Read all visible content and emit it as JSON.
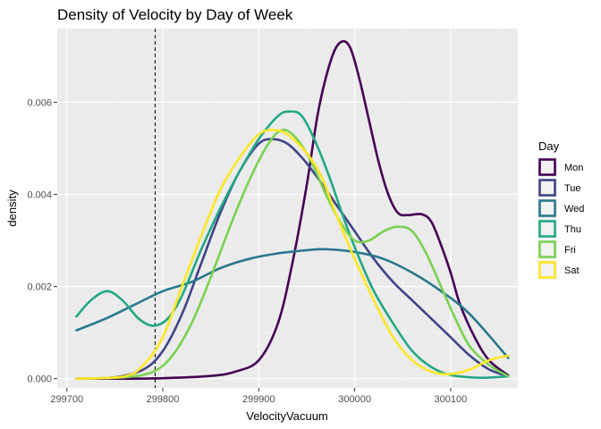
{
  "chart_data": {
    "type": "line",
    "title": "Density of Velocity by Day of Week",
    "xlabel": "VelocityVacuum",
    "ylabel": "density",
    "xlim": [
      299690,
      300170
    ],
    "ylim": [
      -0.0002,
      0.0076
    ],
    "x_ticks": [
      299700,
      299800,
      299900,
      300000,
      300100
    ],
    "x_tick_labels": [
      "299700",
      "299800",
      "299900",
      "300000",
      "300100"
    ],
    "y_ticks": [
      0.0,
      0.002,
      0.004,
      0.006
    ],
    "y_tick_labels": [
      "0.000",
      "0.002",
      "0.004",
      "0.006"
    ],
    "grid": true,
    "vline": 299792,
    "legend": {
      "title": "Day",
      "position": "right"
    },
    "series": [
      {
        "name": "Mon",
        "color": "#440154",
        "points": [
          [
            299710,
            0
          ],
          [
            299750,
            0
          ],
          [
            299800,
            1e-05
          ],
          [
            299850,
            6e-05
          ],
          [
            299875,
            0.00015
          ],
          [
            299900,
            0.0004
          ],
          [
            299920,
            0.0012
          ],
          [
            299935,
            0.0025
          ],
          [
            299950,
            0.0042
          ],
          [
            299962,
            0.0058
          ],
          [
            299975,
            0.0069
          ],
          [
            299985,
            0.0073
          ],
          [
            299995,
            0.0072
          ],
          [
            300005,
            0.0065
          ],
          [
            300015,
            0.0056
          ],
          [
            300025,
            0.0047
          ],
          [
            300035,
            0.004
          ],
          [
            300045,
            0.0036
          ],
          [
            300055,
            0.00355
          ],
          [
            300070,
            0.00357
          ],
          [
            300080,
            0.0034
          ],
          [
            300090,
            0.0029
          ],
          [
            300100,
            0.0023
          ],
          [
            300110,
            0.0016
          ],
          [
            300125,
            0.0009
          ],
          [
            300140,
            0.0004
          ],
          [
            300160,
            7e-05
          ]
        ]
      },
      {
        "name": "Tue",
        "color": "#414487",
        "points": [
          [
            299710,
            0
          ],
          [
            299750,
            3e-05
          ],
          [
            299780,
            0.0002
          ],
          [
            299800,
            0.0006
          ],
          [
            299820,
            0.0014
          ],
          [
            299840,
            0.0025
          ],
          [
            299860,
            0.0036
          ],
          [
            299880,
            0.0045
          ],
          [
            299900,
            0.0051
          ],
          [
            299915,
            0.0052
          ],
          [
            299930,
            0.0051
          ],
          [
            299945,
            0.0048
          ],
          [
            299960,
            0.0044
          ],
          [
            299980,
            0.0038
          ],
          [
            300000,
            0.0032
          ],
          [
            300020,
            0.0026
          ],
          [
            300040,
            0.0021
          ],
          [
            300060,
            0.0017
          ],
          [
            300080,
            0.0013
          ],
          [
            300100,
            0.0009
          ],
          [
            300120,
            0.0005
          ],
          [
            300140,
            0.0002
          ],
          [
            300160,
            5e-05
          ]
        ]
      },
      {
        "name": "Wed",
        "color": "#2a788e",
        "points": [
          [
            299710,
            0.00105
          ],
          [
            299740,
            0.0013
          ],
          [
            299770,
            0.0016
          ],
          [
            299800,
            0.0019
          ],
          [
            299830,
            0.0021
          ],
          [
            299860,
            0.0024
          ],
          [
            299890,
            0.0026
          ],
          [
            299920,
            0.00272
          ],
          [
            299950,
            0.00279
          ],
          [
            299970,
            0.00281
          ],
          [
            300000,
            0.00275
          ],
          [
            300030,
            0.0026
          ],
          [
            300060,
            0.0023
          ],
          [
            300090,
            0.0019
          ],
          [
            300120,
            0.0014
          ],
          [
            300160,
            0.00045
          ]
        ]
      },
      {
        "name": "Thu",
        "color": "#22a884",
        "points": [
          [
            299710,
            0.00135
          ],
          [
            299725,
            0.0017
          ],
          [
            299742,
            0.0019
          ],
          [
            299758,
            0.0017
          ],
          [
            299775,
            0.0013
          ],
          [
            299790,
            0.00115
          ],
          [
            299805,
            0.0013
          ],
          [
            299820,
            0.0018
          ],
          [
            299840,
            0.0028
          ],
          [
            299860,
            0.0037
          ],
          [
            299880,
            0.0045
          ],
          [
            299900,
            0.0052
          ],
          [
            299920,
            0.0057
          ],
          [
            299932,
            0.0058
          ],
          [
            299945,
            0.0057
          ],
          [
            299960,
            0.0051
          ],
          [
            299975,
            0.0043
          ],
          [
            299990,
            0.0034
          ],
          [
            300005,
            0.0026
          ],
          [
            300020,
            0.0019
          ],
          [
            300040,
            0.0012
          ],
          [
            300060,
            0.0006
          ],
          [
            300080,
            0.00025
          ],
          [
            300100,
            8e-05
          ],
          [
            300130,
            2e-05
          ],
          [
            300160,
            5e-05
          ]
        ]
      },
      {
        "name": "Fri",
        "color": "#7ad151",
        "points": [
          [
            299710,
            0
          ],
          [
            299760,
            3e-05
          ],
          [
            299790,
            0.00015
          ],
          [
            299810,
            0.0005
          ],
          [
            299830,
            0.0012
          ],
          [
            299850,
            0.0022
          ],
          [
            299870,
            0.0033
          ],
          [
            299890,
            0.0043
          ],
          [
            299910,
            0.0051
          ],
          [
            299925,
            0.0054
          ],
          [
            299940,
            0.0052
          ],
          [
            299955,
            0.0047
          ],
          [
            299970,
            0.004
          ],
          [
            299985,
            0.0034
          ],
          [
            300000,
            0.003
          ],
          [
            300015,
            0.003
          ],
          [
            300030,
            0.0032
          ],
          [
            300045,
            0.0033
          ],
          [
            300060,
            0.0032
          ],
          [
            300075,
            0.0027
          ],
          [
            300090,
            0.002
          ],
          [
            300105,
            0.0013
          ],
          [
            300120,
            0.0007
          ],
          [
            300140,
            0.0003
          ],
          [
            300160,
            5e-05
          ]
        ]
      },
      {
        "name": "Sat",
        "color": "#fde725",
        "points": [
          [
            299710,
            0
          ],
          [
            299760,
            5e-05
          ],
          [
            299780,
            0.0003
          ],
          [
            299800,
            0.0009
          ],
          [
            299820,
            0.002
          ],
          [
            299840,
            0.0031
          ],
          [
            299860,
            0.0041
          ],
          [
            299880,
            0.0048
          ],
          [
            299900,
            0.0053
          ],
          [
            299915,
            0.0054
          ],
          [
            299930,
            0.0053
          ],
          [
            299950,
            0.0049
          ],
          [
            299965,
            0.0044
          ],
          [
            299980,
            0.0036
          ],
          [
            300000,
            0.0026
          ],
          [
            300020,
            0.0017
          ],
          [
            300040,
            0.0009
          ],
          [
            300060,
            0.0004
          ],
          [
            300080,
            0.00015
          ],
          [
            300100,
            0.0001
          ],
          [
            300120,
            0.0002
          ],
          [
            300140,
            0.0004
          ],
          [
            300160,
            0.0005
          ]
        ]
      }
    ]
  }
}
